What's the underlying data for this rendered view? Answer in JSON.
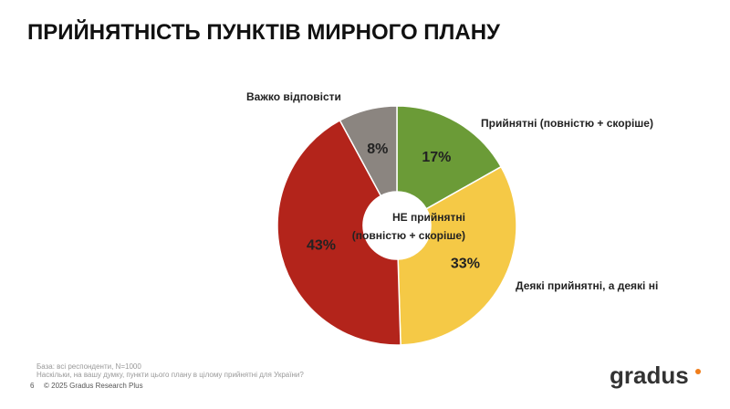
{
  "title": "ПРИЙНЯТНІСТЬ ПУНКТІВ МИРНОГО ПЛАНУ",
  "chart_data": {
    "type": "pie",
    "categories": [
      "Прийнятні (повністю + скоріше)",
      "Деякі прийнятні, а деякі ні",
      "НЕ прийнятні (повністю + скоріше)",
      "Важко відповісти"
    ],
    "values": [
      17,
      33,
      43,
      8
    ],
    "value_labels": [
      "17%",
      "33%",
      "43%",
      "8%"
    ],
    "colors": [
      "#6b9b37",
      "#f5c946",
      "#b3241b",
      "#8b8580"
    ]
  },
  "footer": {
    "base": "База: всі респонденти, N=1000",
    "question": "Наскільки, на вашу думку, пункти цього плану в цілому прийнятні для України?",
    "page": "6",
    "copyright": "© 2025 Gradus Research Plus"
  },
  "logo": "gradus"
}
